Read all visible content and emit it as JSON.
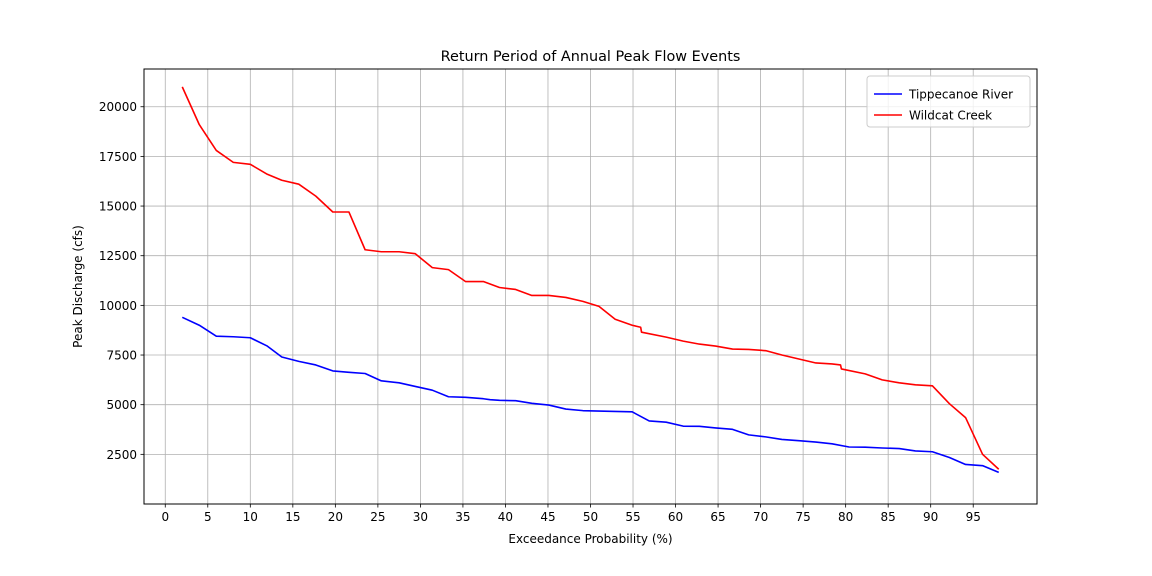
{
  "chart_data": {
    "type": "line",
    "title": "Return Period of Annual Peak Flow Events",
    "xlabel": "Exceedance Probability (%)",
    "ylabel": "Peak Discharge (cfs)",
    "xlim": [
      -2.5,
      102.5
    ],
    "ylim": [
      0,
      21900
    ],
    "x_ticks": [
      0,
      5,
      10,
      15,
      20,
      25,
      30,
      35,
      40,
      45,
      50,
      55,
      60,
      65,
      70,
      75,
      80,
      85,
      90,
      95
    ],
    "y_ticks": [
      2500,
      5000,
      7500,
      10000,
      12500,
      15000,
      17500,
      20000
    ],
    "grid": true,
    "legend_position": "top-right",
    "series": [
      {
        "name": "Tippecanoe River",
        "color": "#0000ff",
        "x": [
          2.0,
          4.0,
          6.0,
          8.0,
          10.0,
          12.0,
          13.7,
          15.7,
          17.7,
          19.7,
          21.6,
          23.5,
          25.4,
          27.5,
          29.4,
          31.4,
          33.3,
          35.3,
          37.4,
          38.2,
          39.3,
          41.2,
          43.1,
          45.1,
          47.1,
          49.1,
          51.0,
          52.9,
          54.9,
          56.9,
          58.9,
          60.9,
          62.8,
          64.7,
          66.7,
          68.6,
          70.6,
          72.5,
          74.5,
          76.5,
          78.4,
          80.4,
          82.3,
          84.3,
          86.3,
          88.2,
          90.2,
          92.2,
          94.1,
          96.1,
          98.0
        ],
        "y": [
          9400,
          9000,
          8450,
          8420,
          8370,
          7950,
          7400,
          7180,
          7000,
          6700,
          6630,
          6570,
          6200,
          6100,
          5920,
          5730,
          5400,
          5370,
          5300,
          5250,
          5220,
          5200,
          5070,
          4980,
          4780,
          4700,
          4680,
          4660,
          4640,
          4180,
          4120,
          3920,
          3910,
          3830,
          3760,
          3480,
          3380,
          3250,
          3190,
          3120,
          3030,
          2870,
          2860,
          2820,
          2790,
          2670,
          2630,
          2340,
          1990,
          1930,
          1590
        ]
      },
      {
        "name": "Wildcat Creek",
        "color": "#ff0000",
        "x": [
          2.0,
          4.0,
          6.0,
          8.0,
          10.0,
          12.0,
          13.7,
          15.7,
          17.7,
          19.7,
          21.6,
          23.5,
          25.4,
          27.5,
          29.4,
          31.4,
          33.3,
          35.3,
          37.4,
          39.3,
          41.2,
          43.1,
          45.1,
          47.1,
          49.1,
          51.0,
          52.9,
          54.9,
          55.9,
          56.0,
          58.9,
          60.9,
          62.8,
          64.7,
          66.7,
          68.6,
          70.6,
          72.5,
          74.5,
          76.5,
          78.4,
          79.4,
          79.5,
          82.3,
          84.3,
          86.3,
          88.2,
          90.2,
          92.2,
          94.1,
          96.1,
          98.0
        ],
        "y": [
          21000,
          19100,
          17800,
          17200,
          17100,
          16600,
          16300,
          16100,
          15500,
          14700,
          14700,
          12800,
          12700,
          12700,
          12600,
          11900,
          11800,
          11200,
          11200,
          10900,
          10800,
          10500,
          10500,
          10400,
          10200,
          9950,
          9300,
          9000,
          8900,
          8650,
          8400,
          8200,
          8050,
          7950,
          7800,
          7780,
          7720,
          7500,
          7300,
          7100,
          7050,
          7000,
          6800,
          6550,
          6250,
          6100,
          6000,
          5950,
          5050,
          4350,
          2500,
          1750
        ]
      }
    ]
  }
}
